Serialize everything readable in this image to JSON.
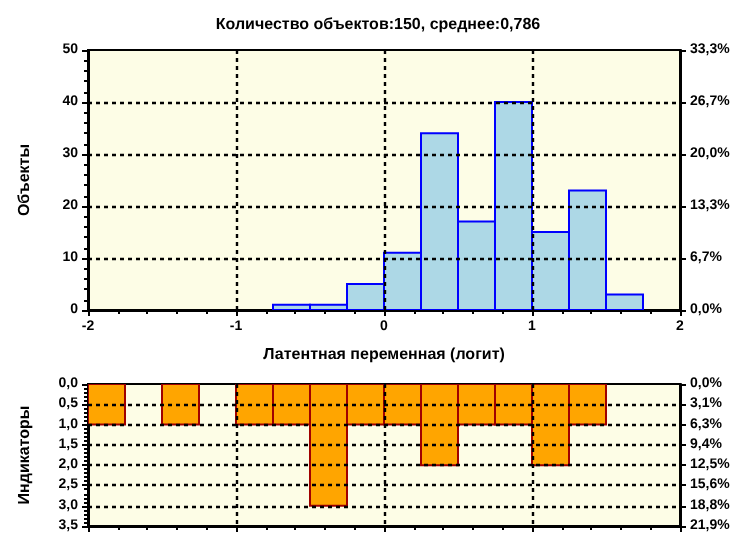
{
  "chart_data": [
    {
      "type": "histogram",
      "title": "Количество объектов:150, среднее:0,786",
      "xlabel": "Латентная переменная (логит)",
      "ylabel": "Объекты",
      "bins": [
        -0.75,
        -0.5,
        -0.25,
        0,
        0.25,
        0.5,
        0.75,
        1,
        1.25,
        1.5,
        1.75
      ],
      "values": [
        1,
        1,
        5,
        11,
        34,
        17,
        40,
        15,
        23,
        3
      ],
      "color": "#add8e6",
      "xlim": [
        -2,
        2
      ],
      "xticks": [
        -2,
        -1,
        0,
        1,
        2
      ],
      "ylim": [
        0,
        50
      ],
      "yticks": [
        0,
        10,
        20,
        30,
        40,
        50
      ],
      "y2lim": [
        0,
        33.3
      ],
      "y2ticks": [
        {
          "value": 0,
          "label": "0,0%"
        },
        {
          "value": 6.7,
          "label": "6,7%"
        },
        {
          "value": 13.3,
          "label": "13,3%"
        },
        {
          "value": 20,
          "label": "20,0%"
        },
        {
          "value": 26.7,
          "label": "26,7%"
        },
        {
          "value": 33.3,
          "label": "33,3%"
        }
      ],
      "grid": true
    },
    {
      "type": "histogram",
      "ylabel": "Индикаторы",
      "bins": [
        -2,
        -1.75,
        -1.5,
        -1.25,
        -1,
        -0.75,
        -0.5,
        -0.25,
        0,
        0.25,
        0.5,
        0.75,
        1,
        1.25,
        1.5
      ],
      "values": [
        1,
        0,
        1,
        0,
        1,
        1,
        3,
        1,
        1,
        2,
        1,
        1,
        2,
        1
      ],
      "color": "#ffa500",
      "xlim": [
        -2,
        2
      ],
      "xticks": [
        {
          "value": -2,
          "label": null
        },
        {
          "value": -1,
          "label": null
        },
        {
          "value": 0,
          "label": null
        },
        {
          "value": 1,
          "label": null
        },
        {
          "value": 2,
          "label": null
        }
      ],
      "ylim": [
        3.5,
        0
      ],
      "yticks": [
        {
          "value": 0,
          "label": "0,0"
        },
        {
          "value": 0.5,
          "label": "0,5"
        },
        {
          "value": 1,
          "label": "1,0"
        },
        {
          "value": 1.5,
          "label": "1,5"
        },
        {
          "value": 2,
          "label": "2,0"
        },
        {
          "value": 2.5,
          "label": "2,5"
        },
        {
          "value": 3,
          "label": "3,0"
        },
        {
          "value": 3.5,
          "label": "3,5"
        }
      ],
      "y2lim": [
        21.9,
        0
      ],
      "y2ticks": [
        {
          "value": 0,
          "label": "0,0%"
        },
        {
          "value": 3.1,
          "label": "3,1%"
        },
        {
          "value": 6.3,
          "label": "6,3%"
        },
        {
          "value": 9.4,
          "label": "9,4%"
        },
        {
          "value": 12.5,
          "label": "12,5%"
        },
        {
          "value": 15.6,
          "label": "15,6%"
        },
        {
          "value": 18.8,
          "label": "18,8%"
        },
        {
          "value": 21.9,
          "label": "21,9%"
        }
      ],
      "tick_labels": "y",
      "grid": true
    }
  ]
}
